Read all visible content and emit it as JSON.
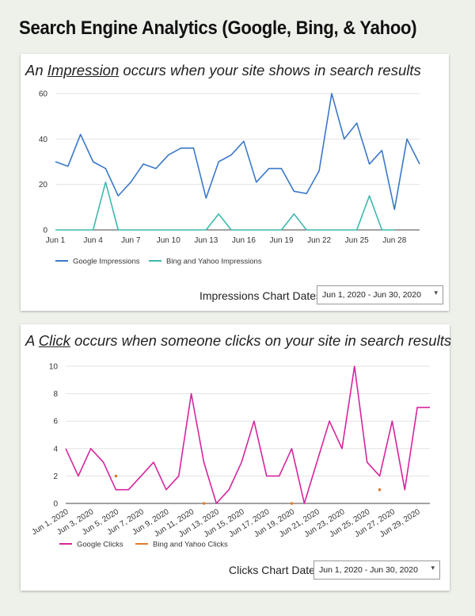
{
  "title": "Search Engine Analytics (Google, Bing, & Yahoo)",
  "impressions": {
    "heading_pre": "An ",
    "heading_kw": "Impression",
    "heading_post": " occurs when your site shows in search results",
    "control_label": "Impressions Chart Dates",
    "date_range": "Jun 1, 2020 - Jun 30, 2020"
  },
  "clicks": {
    "heading_pre": "A ",
    "heading_kw": "Click",
    "heading_post": " occurs when someone clicks on your site in search results",
    "control_label": "Clicks Chart Dates",
    "date_range": "Jun 1, 2020 - Jun 30, 2020"
  },
  "colors": {
    "google_impr": "#3a78c9",
    "bing_impr": "#3fb8ad",
    "google_clicks": "#d6249f",
    "bing_clicks": "#e07b2e",
    "grid": "#e2e2e2"
  },
  "chart_data": [
    {
      "type": "line",
      "title": "Impressions",
      "x": [
        "Jun 1",
        "Jun 2",
        "Jun 3",
        "Jun 4",
        "Jun 5",
        "Jun 6",
        "Jun 7",
        "Jun 8",
        "Jun 9",
        "Jun 10",
        "Jun 11",
        "Jun 12",
        "Jun 13",
        "Jun 14",
        "Jun 15",
        "Jun 16",
        "Jun 17",
        "Jun 18",
        "Jun 19",
        "Jun 20",
        "Jun 21",
        "Jun 22",
        "Jun 23",
        "Jun 24",
        "Jun 25",
        "Jun 26",
        "Jun 27",
        "Jun 28",
        "Jun 29",
        "Jun 30"
      ],
      "x_tick_labels": [
        "Jun 1",
        "Jun 4",
        "Jun 7",
        "Jun 10",
        "Jun 13",
        "Jun 16",
        "Jun 19",
        "Jun 22",
        "Jun 25",
        "Jun 28"
      ],
      "y_ticks": [
        0,
        20,
        40,
        60
      ],
      "ylim": [
        0,
        60
      ],
      "series": [
        {
          "name": "Google Impressions",
          "values": [
            30,
            28,
            42,
            30,
            27,
            15,
            21,
            29,
            27,
            33,
            36,
            36,
            14,
            30,
            33,
            39,
            21,
            27,
            27,
            17,
            16,
            26,
            60,
            40,
            47,
            29,
            35,
            9,
            40,
            29
          ]
        },
        {
          "name": "Bing and Yahoo Impressions",
          "values": [
            0,
            0,
            0,
            0,
            21,
            0,
            0,
            0,
            0,
            0,
            0,
            0,
            0,
            7,
            0,
            0,
            0,
            0,
            0,
            7,
            0,
            0,
            0,
            0,
            0,
            15,
            0,
            0,
            null,
            null
          ]
        }
      ]
    },
    {
      "type": "line",
      "title": "Clicks",
      "x": [
        "Jun 1",
        "Jun 2",
        "Jun 3",
        "Jun 4",
        "Jun 5",
        "Jun 6",
        "Jun 7",
        "Jun 8",
        "Jun 9",
        "Jun 10",
        "Jun 11",
        "Jun 12",
        "Jun 13",
        "Jun 14",
        "Jun 15",
        "Jun 16",
        "Jun 17",
        "Jun 18",
        "Jun 19",
        "Jun 20",
        "Jun 21",
        "Jun 22",
        "Jun 23",
        "Jun 24",
        "Jun 25",
        "Jun 26",
        "Jun 27",
        "Jun 28",
        "Jun 29",
        "Jun 30"
      ],
      "x_tick_labels": [
        "Jun 1, 2020",
        "Jun 3, 2020",
        "Jun 5, 2020",
        "Jun 7, 2020",
        "Jun 9, 2020",
        "Jun 11, 2020",
        "Jun 13, 2020",
        "Jun 15, 2020",
        "Jun 17, 2020",
        "Jun 19, 2020",
        "Jun 21, 2020",
        "Jun 23, 2020",
        "Jun 25, 2020",
        "Jun 27, 2020",
        "Jun 29, 2020"
      ],
      "y_ticks": [
        0,
        2,
        4,
        6,
        8,
        10
      ],
      "ylim": [
        0,
        10
      ],
      "series": [
        {
          "name": "Google Clicks",
          "values": [
            4,
            2,
            4,
            3,
            1,
            1,
            2,
            3,
            1,
            2,
            8,
            3,
            0,
            1,
            3,
            6,
            2,
            2,
            4,
            0,
            3,
            6,
            4,
            10,
            3,
            2,
            6,
            1,
            7,
            7
          ]
        },
        {
          "name": "Bing and Yahoo Clicks",
          "values": [
            null,
            null,
            null,
            null,
            2,
            null,
            null,
            null,
            null,
            null,
            null,
            0,
            null,
            null,
            null,
            null,
            null,
            null,
            0,
            null,
            null,
            null,
            null,
            null,
            null,
            1,
            null,
            null,
            null,
            null
          ]
        }
      ]
    }
  ]
}
